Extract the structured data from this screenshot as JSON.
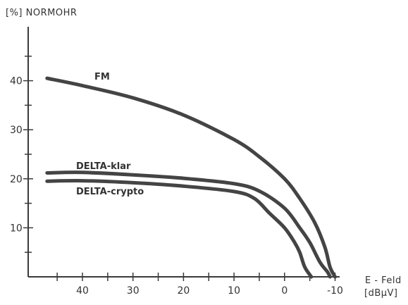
{
  "chart_data": {
    "type": "line",
    "title": "",
    "ylabel": "[%] NORMOHR",
    "xlabel": "E - Feld",
    "xunit": "[dBµV]",
    "x_reversed": true,
    "xlim": [
      48,
      -11
    ],
    "ylim": [
      0,
      46
    ],
    "xticks": [
      40,
      30,
      20,
      10,
      0,
      -10
    ],
    "xtick_labels": [
      "40",
      "30",
      "20",
      "10",
      "0",
      "-10"
    ],
    "yticks": [
      10,
      20,
      30,
      40
    ],
    "ytick_labels": [
      "10",
      "20",
      "30",
      "40"
    ],
    "y_minor_step": 5,
    "x_minor_step": 5,
    "grid": false,
    "legend": "none",
    "line_color": "#444444",
    "series": [
      {
        "name": "FM",
        "x": [
          47,
          40,
          30,
          20,
          10,
          5,
          0,
          -3,
          -6,
          -8,
          -9,
          -10
        ],
        "y": [
          40.5,
          39,
          36.5,
          33,
          28,
          24.5,
          20,
          16,
          11,
          6,
          2,
          0
        ]
      },
      {
        "name": "DELTA-klar",
        "x": [
          47,
          40,
          30,
          20,
          10,
          5,
          0,
          -3,
          -5,
          -7,
          -8.5,
          -9
        ],
        "y": [
          21.2,
          21.3,
          20.8,
          20.1,
          19,
          17.5,
          14,
          10,
          7,
          3,
          1,
          0
        ]
      },
      {
        "name": "DELTA-crypto",
        "x": [
          47,
          40,
          30,
          20,
          10,
          6,
          3,
          0,
          -2,
          -3,
          -4,
          -5.3
        ],
        "y": [
          19.5,
          19.6,
          19.2,
          18.5,
          17.4,
          16,
          13,
          10,
          7,
          5,
          2,
          0
        ]
      }
    ]
  }
}
